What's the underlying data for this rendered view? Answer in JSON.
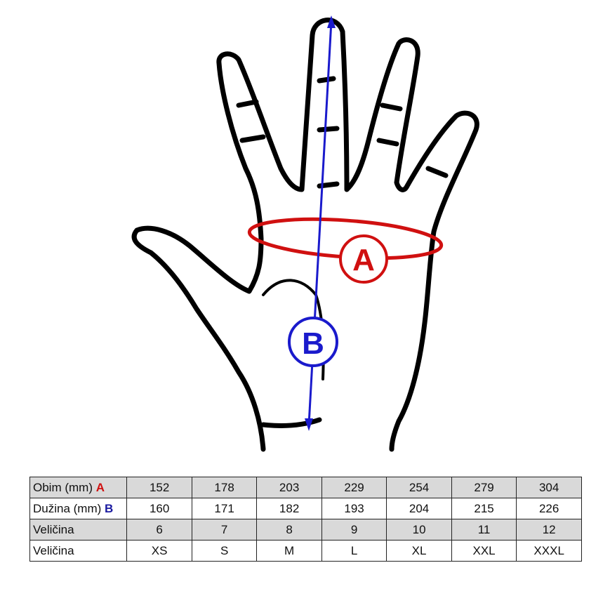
{
  "diagram": {
    "marker_a": "A",
    "marker_b": "B",
    "colors": {
      "a": "#d01010",
      "b": "#1a1acc",
      "outline": "#000000"
    }
  },
  "table": {
    "rows": [
      {
        "label": "Obim (mm)",
        "marker": "A",
        "values": [
          "152",
          "178",
          "203",
          "229",
          "254",
          "279",
          "304"
        ]
      },
      {
        "label": "Dužina (mm)",
        "marker": "B",
        "values": [
          "160",
          "171",
          "182",
          "193",
          "204",
          "215",
          "226"
        ]
      },
      {
        "label": "Veličina",
        "values": [
          "6",
          "7",
          "8",
          "9",
          "10",
          "11",
          "12"
        ]
      },
      {
        "label": "Veličina",
        "values": [
          "XS",
          "S",
          "M",
          "L",
          "XL",
          "XXL",
          "XXXL"
        ]
      }
    ]
  }
}
